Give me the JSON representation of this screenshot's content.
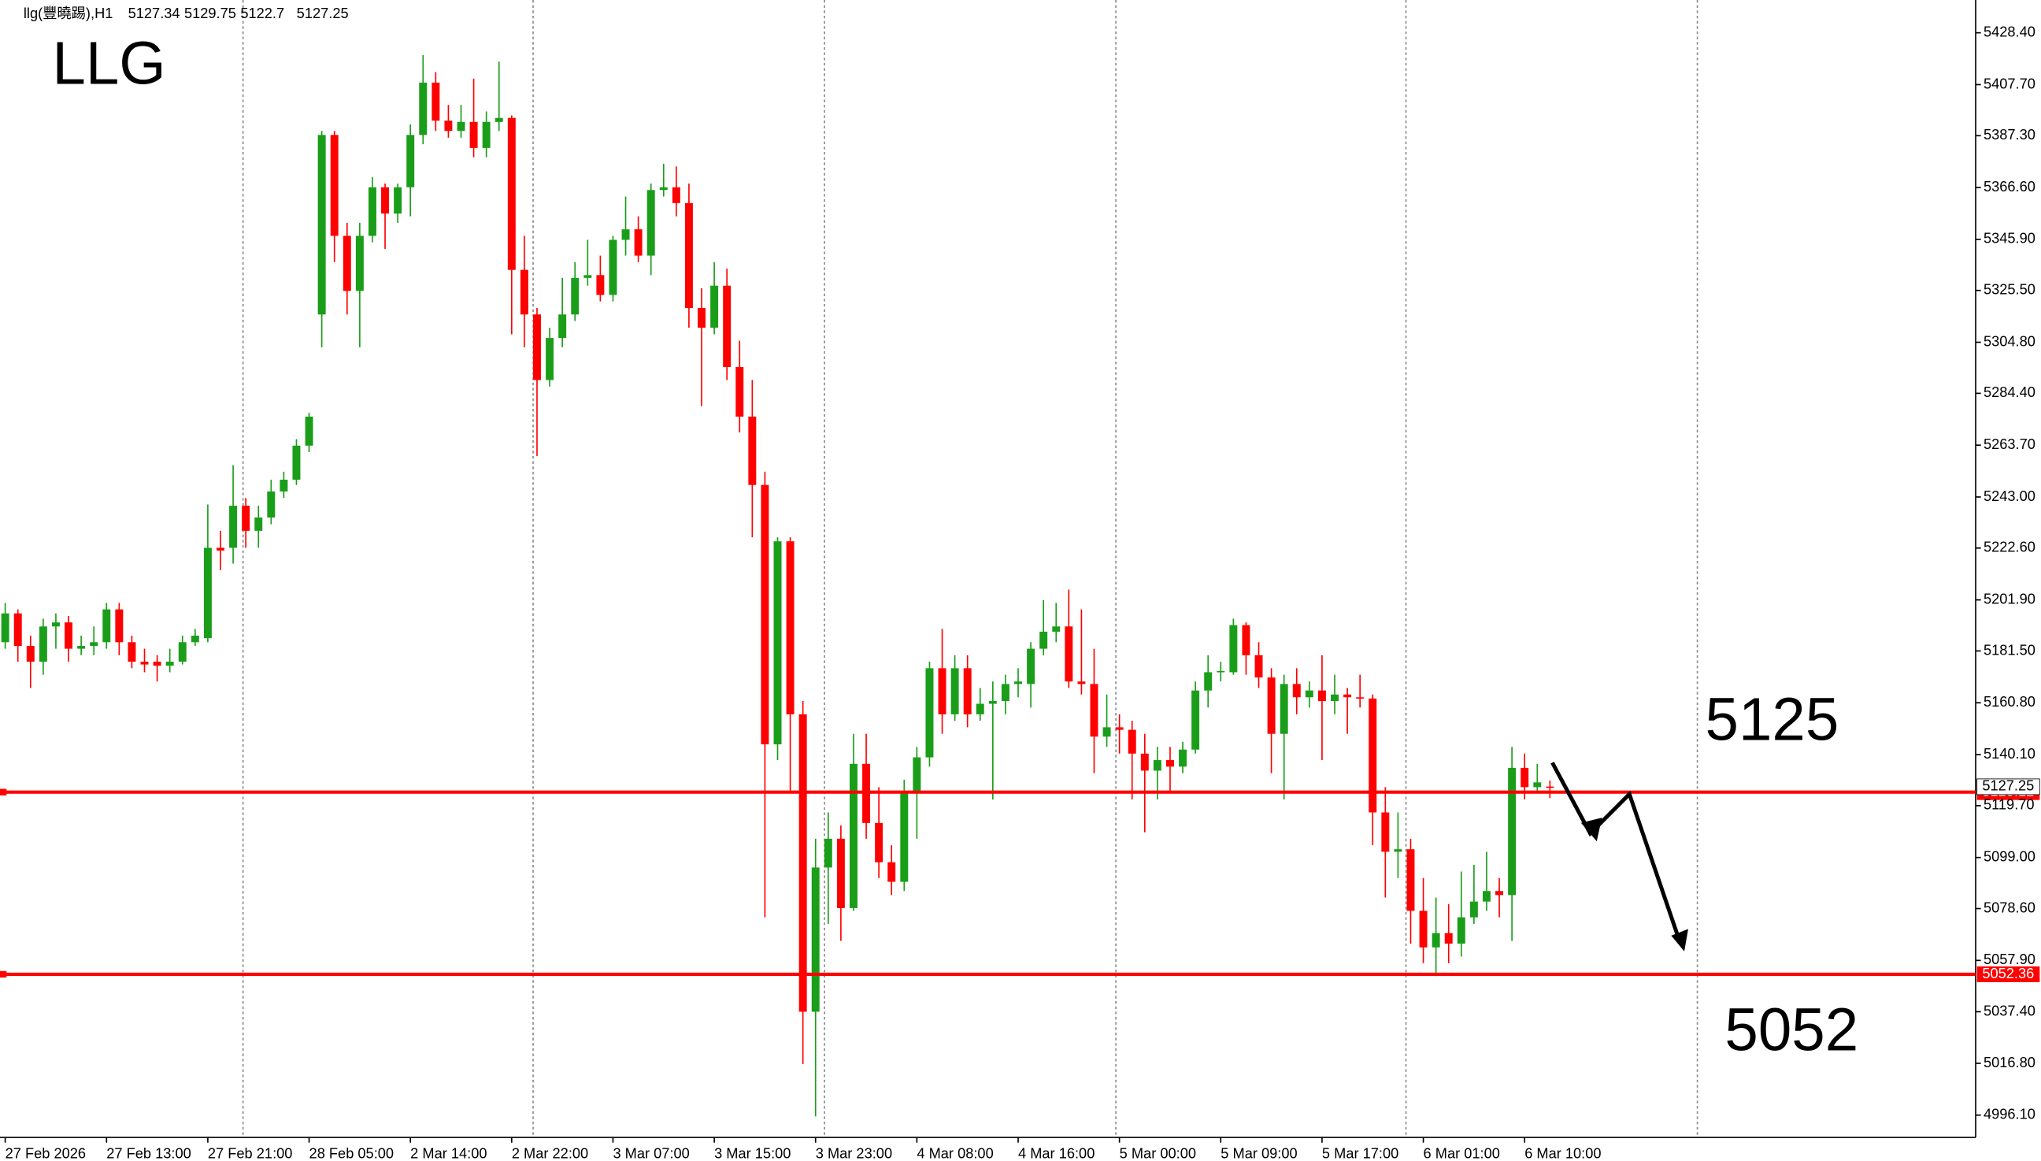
{
  "chart_data": {
    "type": "candlestick",
    "title": "LLG",
    "symbol": "llg(豐曉踢),H1",
    "categories": [
      "27 Feb 2026",
      null,
      null,
      null,
      null,
      null,
      null,
      null,
      "27 Feb 13:00",
      null,
      null,
      null,
      null,
      null,
      null,
      null,
      "27 Feb 21:00",
      null,
      null,
      null,
      null,
      null,
      null,
      null,
      "28 Feb 05:00",
      null,
      null,
      null,
      null,
      null,
      null,
      null,
      "2 Mar 14:00",
      null,
      null,
      null,
      null,
      null,
      null,
      null,
      "2 Mar 22:00",
      null,
      null,
      null,
      null,
      null,
      null,
      null,
      "3 Mar 07:00",
      null,
      null,
      null,
      null,
      null,
      null,
      null,
      "3 Mar 15:00",
      null,
      null,
      null,
      null,
      null,
      null,
      null,
      "3 Mar 23:00",
      null,
      null,
      null,
      null,
      null,
      null,
      null,
      "4 Mar 08:00",
      null,
      null,
      null,
      null,
      null,
      null,
      null,
      "4 Mar 16:00",
      null,
      null,
      null,
      null,
      null,
      null,
      null,
      "5 Mar 00:00",
      null,
      null,
      null,
      null,
      null,
      null,
      null,
      "5 Mar 09:00",
      null,
      null,
      null,
      null,
      null,
      null,
      null,
      "5 Mar 17:00",
      null,
      null,
      null,
      null,
      null,
      null,
      null,
      "6 Mar 01:00",
      null,
      null,
      null,
      null,
      null,
      null,
      null,
      "6 Mar 10:00",
      null,
      null
    ],
    "open": [
      5185.0,
      5196.5,
      5183.5,
      5177.2,
      5191.3,
      5192.9,
      5182.4,
      5183.5,
      5185.0,
      5198.1,
      5185.0,
      5177.2,
      5177.2,
      5175.6,
      5177.2,
      5185.0,
      5186.6,
      5222.7,
      5222.7,
      5239.5,
      5229.5,
      5234.8,
      5245.2,
      5249.9,
      5263.5,
      5315.9,
      5387.6,
      5347.3,
      5325.3,
      5347.3,
      5366.7,
      5356.2,
      5366.7,
      5387.6,
      5408.5,
      5393.3,
      5389.2,
      5392.8,
      5382.4,
      5392.8,
      5394.4,
      5333.7,
      5315.9,
      5289.7,
      5306.5,
      5315.9,
      5330.5,
      5331.6,
      5323.7,
      5345.7,
      5349.9,
      5339.4,
      5365.6,
      5366.7,
      5360.4,
      5318.5,
      5310.6,
      5327.4,
      5294.9,
      5275.1,
      5247.8,
      5144.2,
      5225.3,
      5156.2,
      5037.4,
      5095.0,
      5106.5,
      5078.8,
      5136.4,
      5112.8,
      5097.1,
      5089.3,
      5124.8,
      5139.0,
      5174.6,
      5156.2,
      5174.6,
      5156.2,
      5160.4,
      5161.5,
      5168.3,
      5168.3,
      5182.4,
      5189.2,
      5191.3,
      5169.3,
      5168.3,
      5147.3,
      5151.0,
      5150.0,
      5140.5,
      5133.7,
      5137.9,
      5135.3,
      5142.1,
      5165.7,
      5173.0,
      5173.0,
      5191.8,
      5179.8,
      5170.9,
      5148.4,
      5168.3,
      5163.0,
      5165.7,
      5161.5,
      5164.1,
      5163.0,
      5162.5,
      5117.0,
      5101.3,
      5102.3,
      5077.7,
      5063.1,
      5068.8,
      5064.6,
      5075.1,
      5081.4,
      5085.6,
      5084.0,
      5134.8,
      5127.1,
      5127.34
    ],
    "high": [
      5200.7,
      5198.1,
      5187.6,
      5194.4,
      5196.5,
      5195.5,
      5187.6,
      5191.3,
      5200.7,
      5200.7,
      5187.6,
      5182.4,
      5179.8,
      5182.4,
      5187.6,
      5190.3,
      5240.0,
      5229.5,
      5255.7,
      5242.6,
      5239.5,
      5249.9,
      5253.1,
      5266.1,
      5276.6,
      5389.2,
      5389.2,
      5352.5,
      5352.5,
      5370.8,
      5368.2,
      5368.2,
      5391.8,
      5419.5,
      5412.7,
      5399.6,
      5399.6,
      5410.1,
      5397.0,
      5416.9,
      5395.4,
      5347.3,
      5318.5,
      5310.6,
      5330.5,
      5336.8,
      5345.7,
      5339.4,
      5347.3,
      5363.0,
      5355.1,
      5368.2,
      5376.1,
      5375.0,
      5368.2,
      5326.4,
      5336.8,
      5334.2,
      5305.4,
      5289.7,
      5253.1,
      5226.9,
      5226.9,
      5161.5,
      5106.5,
      5117.0,
      5111.8,
      5148.4,
      5148.4,
      5127.1,
      5103.9,
      5130.1,
      5143.2,
      5177.2,
      5190.3,
      5179.8,
      5179.8,
      5166.7,
      5169.3,
      5172.0,
      5174.6,
      5185.0,
      5201.8,
      5200.7,
      5206.0,
      5198.1,
      5182.4,
      5164.1,
      5156.2,
      5153.6,
      5148.4,
      5143.2,
      5143.2,
      5145.2,
      5169.3,
      5179.8,
      5177.2,
      5194.4,
      5192.9,
      5185.0,
      5174.6,
      5172.0,
      5174.6,
      5169.3,
      5179.8,
      5172.0,
      5166.7,
      5172.0,
      5164.1,
      5127.1,
      5117.0,
      5106.5,
      5090.8,
      5083.0,
      5080.4,
      5093.4,
      5096.1,
      5101.3,
      5090.8,
      5143.2,
      5140.5,
      5136.4,
      5129.75
    ],
    "low": [
      5182.4,
      5177.2,
      5166.7,
      5172.0,
      5182.4,
      5177.2,
      5179.8,
      5179.8,
      5182.4,
      5179.8,
      5174.6,
      5173.0,
      5169.3,
      5173.0,
      5176.1,
      5183.5,
      5185.0,
      5213.8,
      5216.4,
      5222.7,
      5222.7,
      5232.1,
      5242.6,
      5247.8,
      5260.9,
      5302.8,
      5336.8,
      5315.9,
      5302.8,
      5344.7,
      5342.1,
      5352.5,
      5355.1,
      5383.9,
      5389.2,
      5386.5,
      5386.5,
      5378.7,
      5378.7,
      5389.2,
      5308.0,
      5302.8,
      5259.4,
      5287.1,
      5302.8,
      5313.3,
      5327.4,
      5321.1,
      5321.1,
      5339.4,
      5336.8,
      5331.6,
      5363.0,
      5355.1,
      5310.6,
      5279.3,
      5308.0,
      5289.7,
      5268.8,
      5226.9,
      5075.1,
      5137.9,
      5124.8,
      5016.5,
      4995.6,
      5072.5,
      5065.7,
      5077.7,
      5106.5,
      5090.8,
      5084.0,
      5085.6,
      5106.5,
      5135.3,
      5148.4,
      5153.6,
      5151.0,
      5153.6,
      5122.2,
      5156.2,
      5163.0,
      5158.9,
      5179.8,
      5185.0,
      5166.7,
      5164.1,
      5132.7,
      5143.2,
      5140.5,
      5122.2,
      5109.1,
      5122.2,
      5124.8,
      5132.7,
      5140.5,
      5158.9,
      5169.3,
      5172.0,
      5172.0,
      5166.7,
      5132.7,
      5122.2,
      5156.2,
      5158.9,
      5137.9,
      5156.2,
      5148.4,
      5158.9,
      5103.9,
      5083.0,
      5090.8,
      5064.6,
      5056.8,
      5051.6,
      5056.8,
      5059.4,
      5072.5,
      5077.7,
      5075.1,
      5065.7,
      5122.2,
      5124.8,
      5122.7
    ],
    "close": [
      5196.5,
      5183.5,
      5177.2,
      5191.3,
      5192.9,
      5182.4,
      5183.5,
      5185.0,
      5198.1,
      5185.0,
      5177.2,
      5176.1,
      5175.6,
      5177.2,
      5185.0,
      5187.6,
      5222.7,
      5221.6,
      5239.5,
      5229.5,
      5234.8,
      5245.2,
      5249.9,
      5263.5,
      5275.1,
      5387.6,
      5347.3,
      5325.3,
      5347.3,
      5366.7,
      5356.2,
      5366.7,
      5387.6,
      5408.5,
      5393.3,
      5389.2,
      5392.8,
      5382.4,
      5392.8,
      5394.4,
      5333.7,
      5315.9,
      5289.7,
      5306.5,
      5315.9,
      5330.5,
      5331.6,
      5323.7,
      5345.7,
      5349.9,
      5339.4,
      5365.6,
      5366.7,
      5360.4,
      5318.5,
      5310.6,
      5327.4,
      5294.9,
      5275.1,
      5247.8,
      5144.2,
      5225.3,
      5156.2,
      5037.4,
      5095.0,
      5106.5,
      5078.8,
      5136.4,
      5112.8,
      5097.1,
      5089.3,
      5124.8,
      5139.0,
      5174.6,
      5156.2,
      5174.6,
      5156.2,
      5160.4,
      5161.5,
      5168.3,
      5169.3,
      5182.4,
      5189.2,
      5191.3,
      5169.3,
      5168.3,
      5147.3,
      5151.0,
      5150.0,
      5140.5,
      5133.7,
      5137.9,
      5135.3,
      5142.1,
      5165.7,
      5173.0,
      5173.5,
      5191.8,
      5179.8,
      5170.9,
      5148.4,
      5168.3,
      5163.0,
      5165.7,
      5161.5,
      5164.1,
      5163.0,
      5162.5,
      5117.0,
      5101.3,
      5102.3,
      5077.7,
      5063.1,
      5068.8,
      5064.6,
      5075.1,
      5081.4,
      5085.6,
      5084.0,
      5134.8,
      5127.1,
      5129.0,
      5127.25
    ],
    "up_color": "#1a9e1a",
    "down_color": "#ff0000",
    "ylim": [
      4987.2,
      5441.5
    ],
    "yticks": [
      {
        "value": 5428.4,
        "label": "5428.40"
      },
      {
        "value": 5407.7,
        "label": "5407.70"
      },
      {
        "value": 5387.3,
        "label": "5387.30"
      },
      {
        "value": 5366.6,
        "label": "5366.60"
      },
      {
        "value": 5345.9,
        "label": "5345.90"
      },
      {
        "value": 5325.5,
        "label": "5325.50"
      },
      {
        "value": 5304.8,
        "label": "5304.80"
      },
      {
        "value": 5284.4,
        "label": "5284.40"
      },
      {
        "value": 5263.7,
        "label": "5263.70"
      },
      {
        "value": 5243.0,
        "label": "5243.00"
      },
      {
        "value": 5222.6,
        "label": "5222.60"
      },
      {
        "value": 5201.9,
        "label": "5201.90"
      },
      {
        "value": 5181.5,
        "label": "5181.50"
      },
      {
        "value": 5160.8,
        "label": "5160.80"
      },
      {
        "value": 5140.1,
        "label": "5140.10"
      },
      {
        "value": 5119.7,
        "label": "5119.70"
      },
      {
        "value": 5099.0,
        "label": "5099.00"
      },
      {
        "value": 5078.6,
        "label": "5078.60"
      },
      {
        "value": 5057.9,
        "label": "5057.90"
      },
      {
        "value": 5037.4,
        "label": "5037.40"
      },
      {
        "value": 5016.8,
        "label": "5016.80"
      },
      {
        "value": 4996.1,
        "label": "4996.10"
      }
    ],
    "levels": [
      {
        "value": 5125.12,
        "note": "5125",
        "color": "#ff0000"
      },
      {
        "value": 5052.36,
        "note": "5052",
        "color": "#ff0000"
      }
    ]
  }
}
